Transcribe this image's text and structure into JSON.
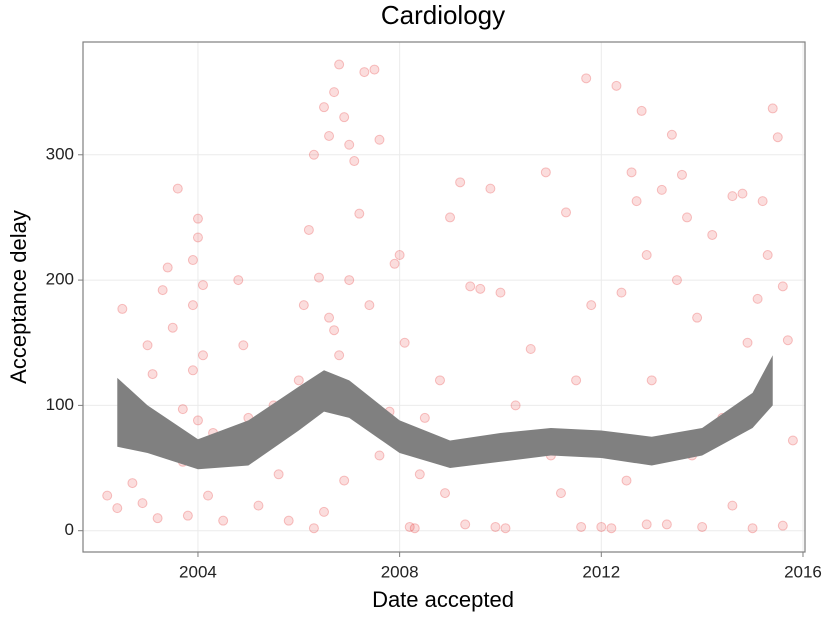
{
  "chart_data": {
    "type": "scatter",
    "title": "Cardiology",
    "x_label": "Date accepted",
    "y_label": "Acceptance delay",
    "xlim": [
      2001.72,
      2016.04
    ],
    "ylim": [
      -17,
      390
    ],
    "xticks": [
      2004,
      2008,
      2012,
      2016
    ],
    "yticks": [
      0,
      100,
      200,
      300
    ],
    "grid": true,
    "points": {
      "color": "#e41a1c",
      "x": [
        2002.2,
        2002.4,
        2002.5,
        2002.7,
        2002.9,
        2003.0,
        2003.1,
        2003.2,
        2003.3,
        2003.4,
        2003.5,
        2003.6,
        2003.7,
        2003.8,
        2003.9,
        2004.0,
        2003.7,
        2003.9,
        2004.0,
        2004.2,
        2004.1,
        2003.9,
        2004.0,
        2004.1,
        2004.3,
        2004.5,
        2004.8,
        2004.9,
        2005.0,
        2005.2,
        2005.4,
        2005.6,
        2005.8,
        2006.0,
        2006.1,
        2006.2,
        2006.3,
        2006.4,
        2006.5,
        2006.6,
        2006.7,
        2006.8,
        2006.9,
        2007.0,
        2007.1,
        2007.2,
        2007.3,
        2007.5,
        2007.6,
        2006.6,
        2006.7,
        2006.8,
        2007.0,
        2006.3,
        2006.5,
        2006.9,
        2007.4,
        2007.6,
        2007.9,
        2008.0,
        2008.1,
        2008.2,
        2008.3,
        2008.5,
        2008.8,
        2009.0,
        2009.2,
        2009.4,
        2009.6,
        2009.8,
        2010.0,
        2009.3,
        2009.9,
        2010.3,
        2010.6,
        2010.9,
        2011.0,
        2011.3,
        2011.5,
        2011.7,
        2011.8,
        2012.0,
        2012.2,
        2012.3,
        2012.4,
        2012.6,
        2012.7,
        2012.8,
        2012.9,
        2013.0,
        2013.2,
        2013.3,
        2013.4,
        2013.5,
        2013.6,
        2013.7,
        2013.9,
        2014.0,
        2014.2,
        2014.4,
        2014.6,
        2014.8,
        2015.0,
        2015.1,
        2015.2,
        2015.3,
        2015.4,
        2015.5,
        2015.6,
        2015.7,
        2015.8,
        2015.6,
        2014.9,
        2014.6,
        2013.8,
        2012.9,
        2012.5,
        2011.6,
        2011.2,
        2010.5,
        2010.1,
        2009.6,
        2008.9,
        2008.4,
        2007.8,
        2005.5,
        2004.6
      ],
      "y": [
        28,
        18,
        177,
        38,
        22,
        148,
        125,
        10,
        192,
        210,
        162,
        273,
        97,
        12,
        216,
        249,
        55,
        128,
        88,
        28,
        140,
        180,
        234,
        196,
        78,
        8,
        200,
        148,
        90,
        20,
        77,
        45,
        8,
        120,
        180,
        240,
        300,
        202,
        338,
        315,
        350,
        372,
        330,
        308,
        295,
        253,
        366,
        368,
        312,
        170,
        160,
        140,
        200,
        2,
        15,
        40,
        180,
        60,
        213,
        220,
        150,
        3,
        2,
        90,
        120,
        250,
        278,
        195,
        193,
        273,
        190,
        5,
        3,
        100,
        145,
        286,
        60,
        254,
        120,
        361,
        180,
        3,
        2,
        355,
        190,
        286,
        263,
        335,
        220,
        120,
        272,
        5,
        316,
        200,
        284,
        250,
        170,
        3,
        236,
        90,
        267,
        269,
        2,
        185,
        263,
        220,
        337,
        314,
        195,
        152,
        72,
        4,
        150,
        20,
        60,
        5,
        40,
        3,
        30,
        70,
        2,
        60,
        30,
        45,
        95,
        100,
        60
      ]
    },
    "smooth": {
      "color": "#808080",
      "x": [
        2002.4,
        2003,
        2004,
        2005,
        2006,
        2006.5,
        2007,
        2008,
        2009,
        2010,
        2011,
        2012,
        2013,
        2014,
        2015,
        2015.4
      ],
      "lower": [
        67,
        62,
        49,
        52,
        80,
        95,
        90,
        62,
        50,
        55,
        60,
        58,
        52,
        60,
        82,
        100
      ],
      "upper": [
        122,
        100,
        73,
        88,
        115,
        128,
        120,
        88,
        72,
        78,
        82,
        80,
        75,
        82,
        110,
        140
      ]
    }
  }
}
